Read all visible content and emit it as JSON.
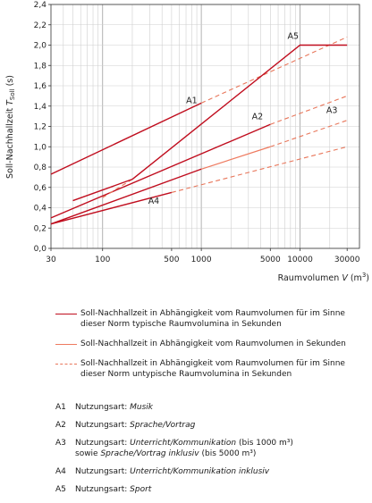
{
  "chart_data": {
    "type": "line",
    "x_scale": "log",
    "xlabel": "Raumvolumen V (m³)",
    "ylabel": "Soll-Nachhallzeit T_Soll (s)",
    "xlim": [
      30,
      40000
    ],
    "ylim": [
      0,
      2.4
    ],
    "x_ticks": [
      30,
      100,
      500,
      1000,
      5000,
      10000,
      30000
    ],
    "x_tick_labels": [
      "30",
      "100",
      "500",
      "1000",
      "5000",
      "10000",
      "30000"
    ],
    "y_ticks": [
      0,
      0.2,
      0.4,
      0.6,
      0.8,
      1.0,
      1.2,
      1.4,
      1.6,
      1.8,
      2.0,
      2.2,
      2.4
    ],
    "y_tick_labels": [
      "0,0",
      "0,2",
      "0,4",
      "0,6",
      "0,8",
      "1,0",
      "1,2",
      "1,4",
      "1,6",
      "1,8",
      "2,0",
      "2,2",
      "2,4"
    ],
    "grid": true,
    "series": [
      {
        "name": "A1",
        "style": "solid-dark",
        "x": [
          30,
          1000
        ],
        "y": [
          0.73,
          1.43
        ]
      },
      {
        "name": "A1",
        "style": "dashed",
        "x": [
          1000,
          30000
        ],
        "y": [
          1.43,
          2.08
        ]
      },
      {
        "name": "A2",
        "style": "solid-dark",
        "x": [
          30,
          5000
        ],
        "y": [
          0.3,
          1.22
        ]
      },
      {
        "name": "A2",
        "style": "dashed",
        "x": [
          5000,
          30000
        ],
        "y": [
          1.22,
          1.5
        ]
      },
      {
        "name": "A3",
        "style": "solid-dark",
        "x": [
          30,
          1000
        ],
        "y": [
          0.24,
          0.78
        ]
      },
      {
        "name": "A3",
        "style": "solid-light",
        "x": [
          1000,
          5000
        ],
        "y": [
          0.78,
          1.0
        ]
      },
      {
        "name": "A3",
        "style": "dashed",
        "x": [
          5000,
          30000
        ],
        "y": [
          1.0,
          1.26
        ]
      },
      {
        "name": "A4",
        "style": "solid-dark",
        "x": [
          30,
          500
        ],
        "y": [
          0.24,
          0.55
        ]
      },
      {
        "name": "A4",
        "style": "dashed",
        "x": [
          500,
          30000
        ],
        "y": [
          0.55,
          1.0
        ]
      },
      {
        "name": "A5",
        "style": "dashed",
        "x": [
          100,
          200
        ],
        "y": [
          0.5,
          0.68
        ]
      },
      {
        "name": "A5",
        "style": "solid-dark",
        "x": [
          200,
          10000,
          30000
        ],
        "y": [
          0.68,
          2.0,
          2.0
        ]
      },
      {
        "name": "",
        "style": "solid-dark",
        "x": [
          50,
          200
        ],
        "y": [
          0.47,
          0.68
        ]
      }
    ],
    "annotations": [
      {
        "text": "A1",
        "x": 800,
        "y": 1.43
      },
      {
        "text": "A2",
        "x": 3700,
        "y": 1.27
      },
      {
        "text": "A3",
        "x": 21000,
        "y": 1.33
      },
      {
        "text": "A4",
        "x": 330,
        "y": 0.44
      },
      {
        "text": "A5",
        "x": 8500,
        "y": 2.06
      }
    ],
    "colors": {
      "dark": "#c00d1e",
      "light": "#ee7a5f",
      "dashed": "#e8765a"
    }
  },
  "axis_titles": {
    "y_main": "Soll-Nachhallzeit ",
    "y_var": "T",
    "y_sub": "Soll",
    "y_unit": " (s)",
    "x_main": "Raumvolumen ",
    "x_var": "V",
    "x_unit_pre": " (m",
    "x_unit_sup": "3",
    "x_unit_post": ")"
  },
  "legend": [
    {
      "style": "solid-dark",
      "text": "Soll-Nachhallzeit in Abhängigkeit vom Raumvolumen für im Sinne dieser Norm typische Raumvolumina in Sekunden"
    },
    {
      "style": "solid-light",
      "text": "Soll-Nachhallzeit in Abhängigkeit vom Raumvolumen in Sekunden"
    },
    {
      "style": "dashed",
      "text": "Soll-Nachhallzeit in Abhängigkeit vom Raumvolumen für im Sinne dieser Norm untypische Raumvolumina in Sekunden"
    }
  ],
  "codes": [
    {
      "id": "A1",
      "prefix": "Nutzungsart: ",
      "type": "Musik"
    },
    {
      "id": "A2",
      "prefix": "Nutzungsart: ",
      "type": "Sprache/Vortrag"
    },
    {
      "id": "A3",
      "prefix": "Nutzungsart: ",
      "type": "Unterricht/Kommunikation",
      "suffix": " (bis 1000 m³)",
      "line2_pre": "sowie ",
      "line2_type": "Sprache/Vortrag inklusiv",
      "line2_suffix": " (bis  5000 m³)"
    },
    {
      "id": "A4",
      "prefix": "Nutzungsart: ",
      "type": "Unterricht/Kommunikation inklusiv"
    },
    {
      "id": "A5",
      "prefix": "Nutzungsart: ",
      "type": "Sport"
    }
  ]
}
